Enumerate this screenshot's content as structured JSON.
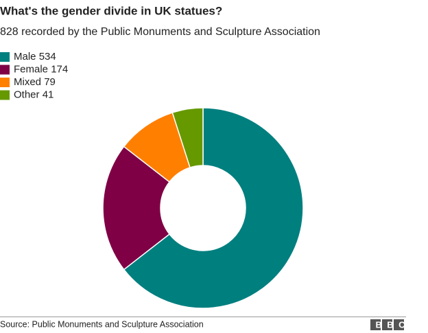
{
  "chart_data": {
    "type": "donut",
    "title": "What's the gender divide in UK statues?",
    "subtitle": "828 recorded by the Public Monuments and Sculpture Association",
    "categories": [
      "Male",
      "Female",
      "Mixed",
      "Other"
    ],
    "values": [
      534,
      174,
      79,
      41
    ],
    "colors": [
      "#007f7f",
      "#7f0045",
      "#ff7f00",
      "#669900"
    ],
    "source": "Source: Public Monuments and Sculpture Association",
    "logo": "BBC"
  }
}
